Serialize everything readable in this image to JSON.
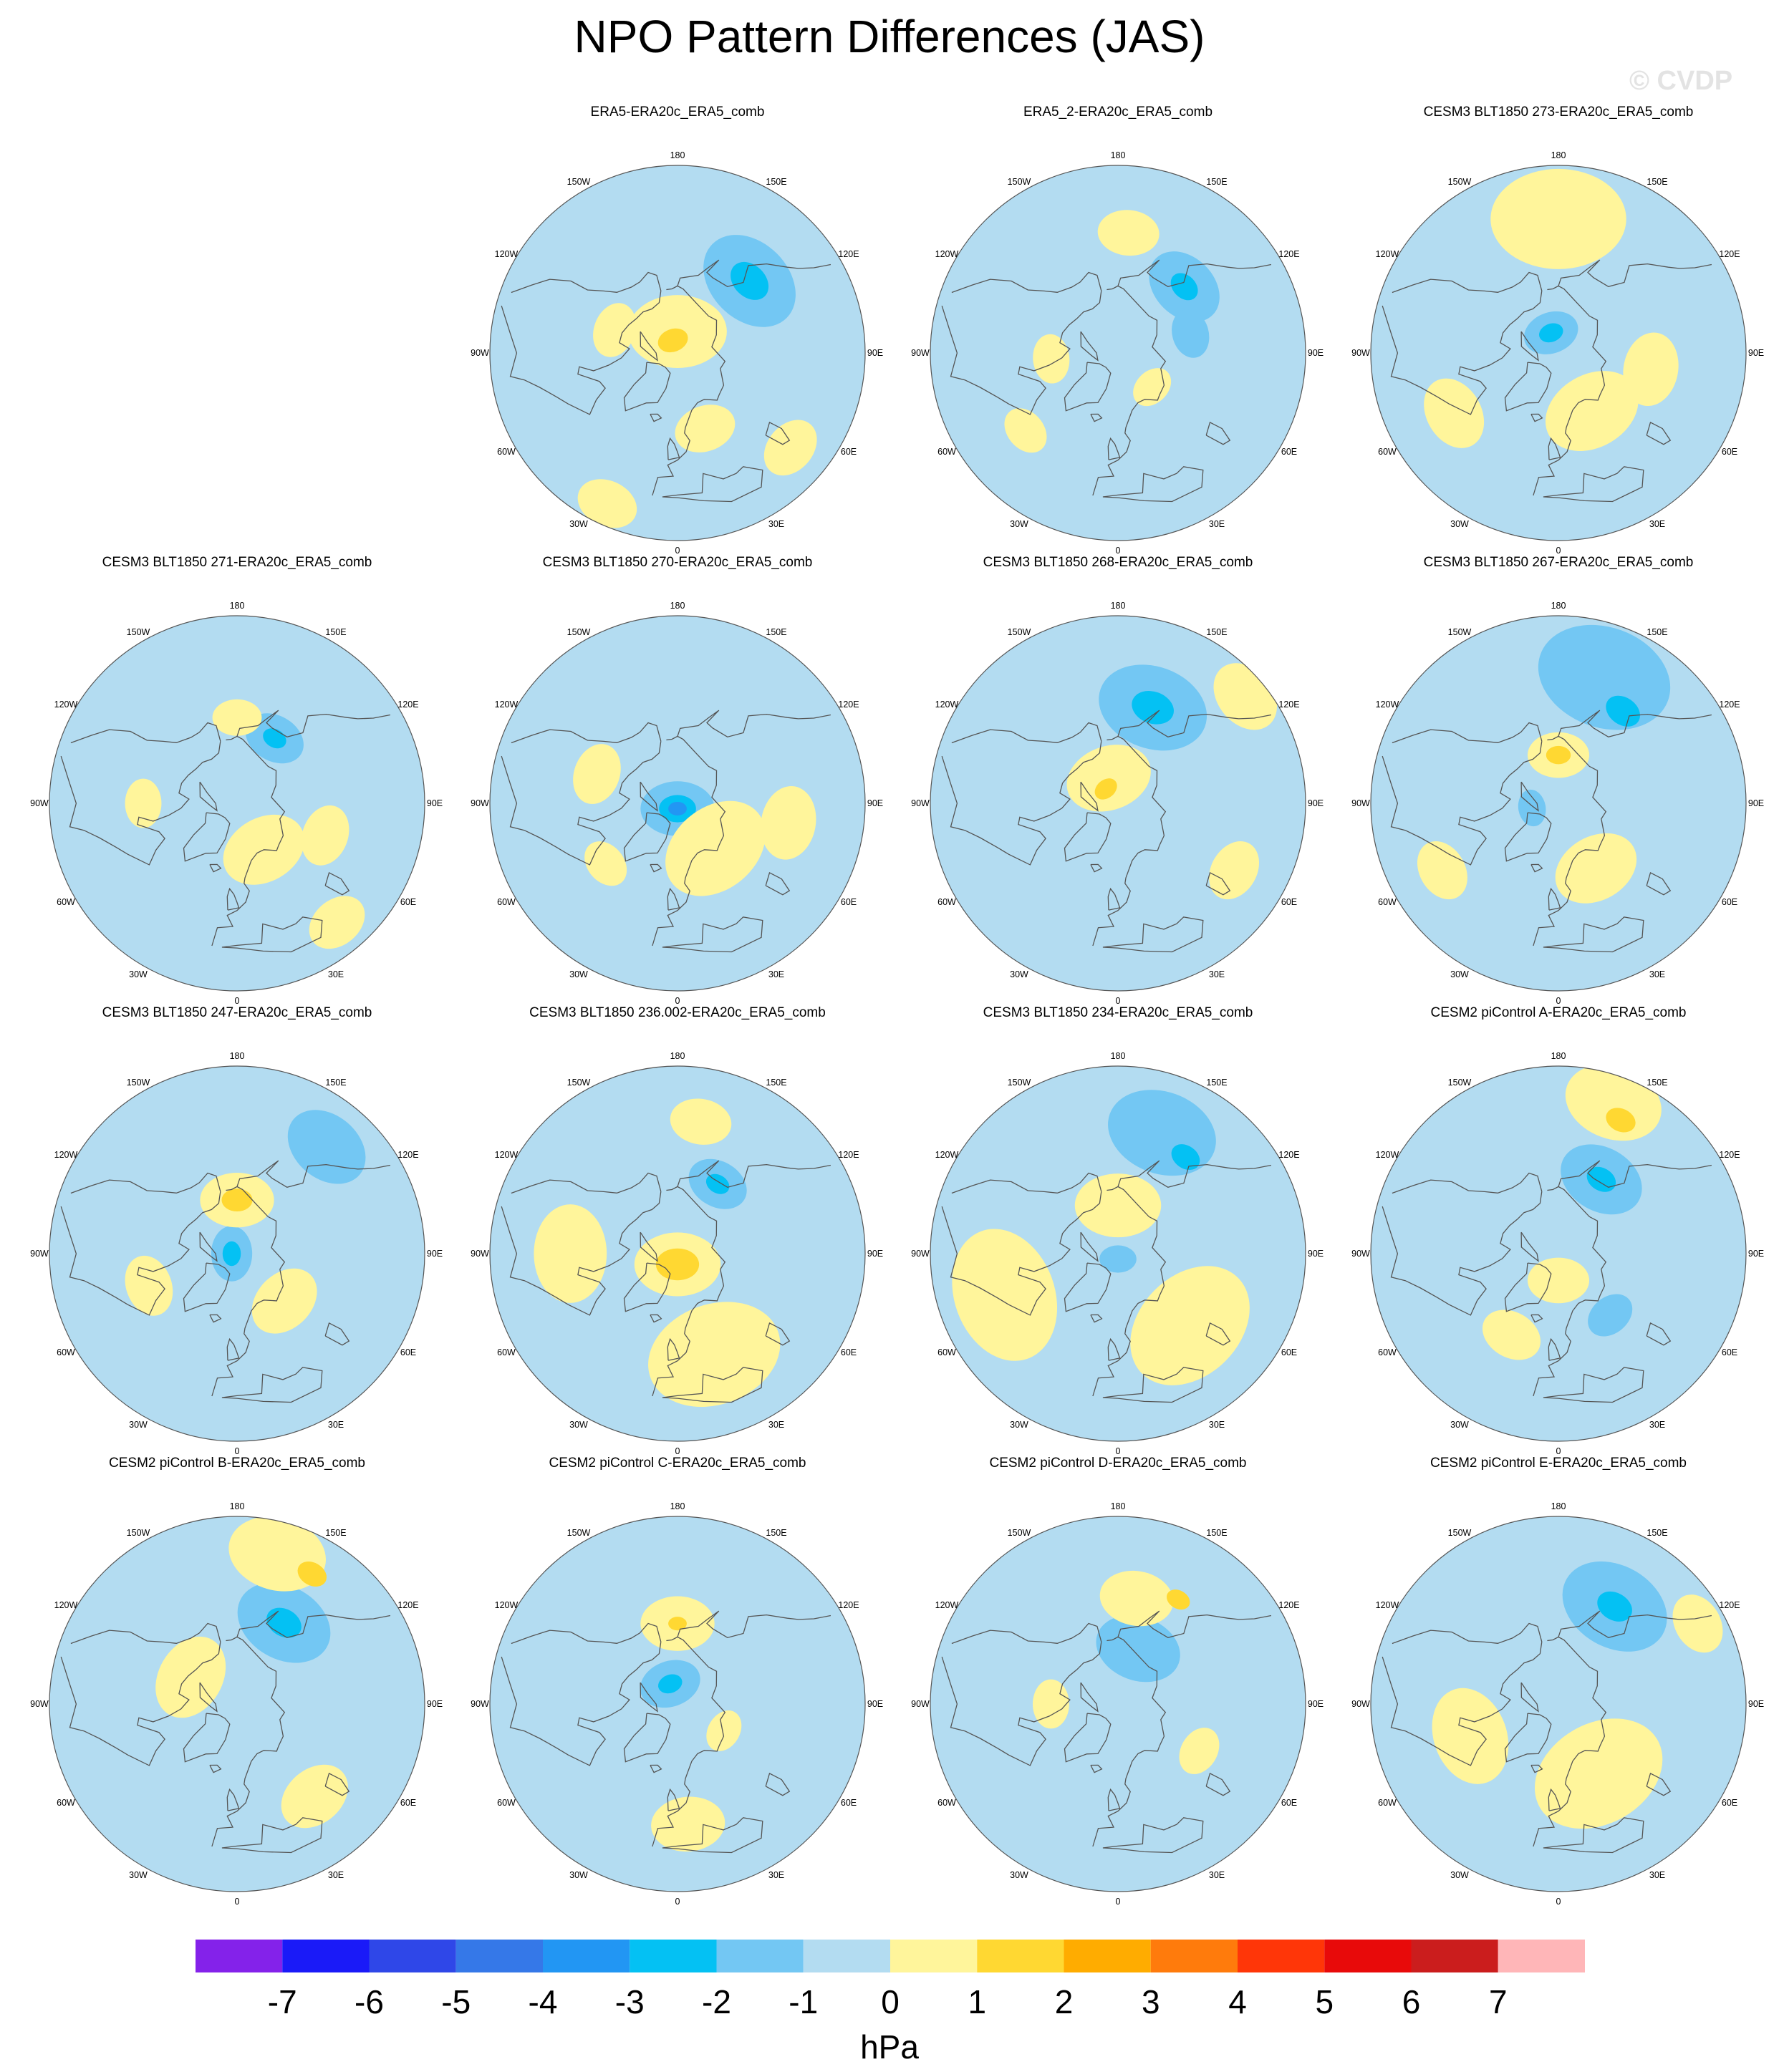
{
  "title": "NPO Pattern Differences (JAS)",
  "watermark": "© CVDP",
  "colors": {
    "ocean_zero_neg": "#b3dcf1",
    "coast": "#555555"
  },
  "longitude_labels": [
    "180",
    "150E",
    "120E",
    "90E",
    "60E",
    "30E",
    "0",
    "30W",
    "60W",
    "90W",
    "120W",
    "150W"
  ],
  "panels": [
    {
      "title": "ERA5-ERA20c_ERA5_comb",
      "blobs": [
        {
          "lon": 135,
          "lat": 52,
          "r": 17,
          "level": -2
        },
        {
          "lon": 135,
          "lat": 52,
          "r": 7,
          "level": -3
        },
        {
          "lon": 180,
          "lat": 82,
          "r": 16,
          "level": 1
        },
        {
          "lon": 200,
          "lat": 85,
          "r": 5,
          "level": 2
        },
        {
          "lon": 20,
          "lat": 60,
          "r": 10,
          "level": 1
        },
        {
          "lon": 250,
          "lat": 65,
          "r": 9,
          "level": 1
        },
        {
          "lon": 335,
          "lat": 28,
          "r": 10,
          "level": 1
        },
        {
          "lon": 50,
          "lat": 35,
          "r": 10,
          "level": 1
        }
      ]
    },
    {
      "title": "ERA5_2-ERA20c_ERA5_comb",
      "blobs": [
        {
          "lon": 135,
          "lat": 55,
          "r": 13,
          "level": -2
        },
        {
          "lon": 135,
          "lat": 55,
          "r": 5,
          "level": -3
        },
        {
          "lon": 105,
          "lat": 62,
          "r": 8,
          "level": -2
        },
        {
          "lon": 175,
          "lat": 45,
          "r": 10,
          "level": 1
        },
        {
          "lon": 275,
          "lat": 65,
          "r": 8,
          "level": 1
        },
        {
          "lon": 310,
          "lat": 45,
          "r": 8,
          "level": 1
        },
        {
          "lon": 45,
          "lat": 72,
          "r": 7,
          "level": 1
        }
      ]
    },
    {
      "title": "CESM3 BLT1850 273-ERA20c_ERA5_comb",
      "blobs": [
        {
          "lon": 180,
          "lat": 40,
          "r": 22,
          "level": 1
        },
        {
          "lon": 200,
          "lat": 82,
          "r": 9,
          "level": -2
        },
        {
          "lon": 200,
          "lat": 82,
          "r": 4,
          "level": -3
        },
        {
          "lon": 30,
          "lat": 65,
          "r": 16,
          "level": 1
        },
        {
          "lon": 80,
          "lat": 55,
          "r": 12,
          "level": 1
        },
        {
          "lon": 300,
          "lat": 45,
          "r": 12,
          "level": 1
        }
      ]
    },
    {
      "title": "CESM3 BLT1850 271-ERA20c_ERA5_comb",
      "blobs": [
        {
          "lon": 150,
          "lat": 62,
          "r": 10,
          "level": -2
        },
        {
          "lon": 150,
          "lat": 62,
          "r": 4,
          "level": -3
        },
        {
          "lon": 30,
          "lat": 70,
          "r": 14,
          "level": 1
        },
        {
          "lon": 70,
          "lat": 55,
          "r": 10,
          "level": 1
        },
        {
          "lon": 40,
          "lat": 32,
          "r": 10,
          "level": 1
        },
        {
          "lon": 270,
          "lat": 55,
          "r": 8,
          "level": 1
        },
        {
          "lon": 180,
          "lat": 58,
          "r": 8,
          "level": 1
        }
      ]
    },
    {
      "title": "CESM3 BLT1850 270-ERA20c_ERA5_comb",
      "blobs": [
        {
          "lon": 0,
          "lat": 88,
          "r": 12,
          "level": -2
        },
        {
          "lon": 0,
          "lat": 88,
          "r": 6,
          "level": -3
        },
        {
          "lon": 0,
          "lat": 88,
          "r": 3,
          "level": -4
        },
        {
          "lon": 40,
          "lat": 68,
          "r": 18,
          "level": 1
        },
        {
          "lon": 250,
          "lat": 58,
          "r": 10,
          "level": 1
        },
        {
          "lon": 80,
          "lat": 48,
          "r": 12,
          "level": 1
        },
        {
          "lon": 310,
          "lat": 55,
          "r": 8,
          "level": 1
        }
      ]
    },
    {
      "title": "CESM3 BLT1850 268-ERA20c_ERA5_comb",
      "blobs": [
        {
          "lon": 160,
          "lat": 52,
          "r": 18,
          "level": -2
        },
        {
          "lon": 160,
          "lat": 52,
          "r": 7,
          "level": -3
        },
        {
          "lon": 200,
          "lat": 80,
          "r": 14,
          "level": 1
        },
        {
          "lon": 220,
          "lat": 83,
          "r": 4,
          "level": 2
        },
        {
          "lon": 130,
          "lat": 28,
          "r": 12,
          "level": 1
        },
        {
          "lon": 60,
          "lat": 40,
          "r": 10,
          "level": 1
        }
      ]
    },
    {
      "title": "CESM3 BLT1850 267-ERA20c_ERA5_comb",
      "blobs": [
        {
          "lon": 160,
          "lat": 40,
          "r": 22,
          "level": -2
        },
        {
          "lon": 145,
          "lat": 48,
          "r": 6,
          "level": -3
        },
        {
          "lon": 180,
          "lat": 72,
          "r": 10,
          "level": 1
        },
        {
          "lon": 180,
          "lat": 72,
          "r": 4,
          "level": 2
        },
        {
          "lon": 280,
          "lat": 80,
          "r": 6,
          "level": -2
        },
        {
          "lon": 30,
          "lat": 62,
          "r": 14,
          "level": 1
        },
        {
          "lon": 300,
          "lat": 40,
          "r": 10,
          "level": 1
        }
      ]
    },
    {
      "title": "CESM3 BLT1850 247-ERA20c_ERA5_comb",
      "blobs": [
        {
          "lon": 270,
          "lat": 88,
          "r": 9,
          "level": -2
        },
        {
          "lon": 270,
          "lat": 88,
          "r": 4,
          "level": -3
        },
        {
          "lon": 180,
          "lat": 70,
          "r": 12,
          "level": 1
        },
        {
          "lon": 180,
          "lat": 70,
          "r": 5,
          "level": 2
        },
        {
          "lon": 140,
          "lat": 38,
          "r": 14,
          "level": -2
        },
        {
          "lon": 45,
          "lat": 65,
          "r": 12,
          "level": 1
        },
        {
          "lon": 290,
          "lat": 55,
          "r": 10,
          "level": 1
        }
      ]
    },
    {
      "title": "CESM3 BLT1850 236.002-ERA20c_ERA5_comb",
      "blobs": [
        {
          "lon": 0,
          "lat": 86,
          "r": 14,
          "level": 1
        },
        {
          "lon": 0,
          "lat": 86,
          "r": 7,
          "level": 2
        },
        {
          "lon": 150,
          "lat": 60,
          "r": 10,
          "level": -2
        },
        {
          "lon": 150,
          "lat": 60,
          "r": 4,
          "level": -3
        },
        {
          "lon": 20,
          "lat": 50,
          "r": 22,
          "level": 1
        },
        {
          "lon": 270,
          "lat": 50,
          "r": 16,
          "level": 1
        },
        {
          "lon": 170,
          "lat": 40,
          "r": 10,
          "level": 1
        }
      ]
    },
    {
      "title": "CESM3 BLT1850 234-ERA20c_ERA5_comb",
      "blobs": [
        {
          "lon": 160,
          "lat": 42,
          "r": 18,
          "level": -2
        },
        {
          "lon": 145,
          "lat": 46,
          "r": 5,
          "level": -3
        },
        {
          "lon": 180,
          "lat": 72,
          "r": 14,
          "level": 1
        },
        {
          "lon": 45,
          "lat": 52,
          "r": 22,
          "level": 1
        },
        {
          "lon": 290,
          "lat": 45,
          "r": 22,
          "level": 1
        },
        {
          "lon": 0,
          "lat": 88,
          "r": 6,
          "level": -2
        }
      ]
    },
    {
      "title": "CESM2 piControl A-ERA20c_ERA5_comb",
      "blobs": [
        {
          "lon": 150,
          "lat": 58,
          "r": 14,
          "level": -2
        },
        {
          "lon": 150,
          "lat": 58,
          "r": 5,
          "level": -3
        },
        {
          "lon": 160,
          "lat": 30,
          "r": 16,
          "level": 1
        },
        {
          "lon": 155,
          "lat": 35,
          "r": 5,
          "level": 2
        },
        {
          "lon": 0,
          "lat": 80,
          "r": 10,
          "level": 1
        },
        {
          "lon": 40,
          "lat": 60,
          "r": 8,
          "level": -2
        },
        {
          "lon": 330,
          "lat": 55,
          "r": 10,
          "level": 1
        }
      ]
    },
    {
      "title": "CESM2 piControl B-ERA20c_ERA5_comb",
      "blobs": [
        {
          "lon": 150,
          "lat": 55,
          "r": 16,
          "level": -2
        },
        {
          "lon": 150,
          "lat": 55,
          "r": 6,
          "level": -3
        },
        {
          "lon": 165,
          "lat": 32,
          "r": 16,
          "level": 1
        },
        {
          "lon": 150,
          "lat": 34,
          "r": 5,
          "level": 2
        },
        {
          "lon": 240,
          "lat": 70,
          "r": 14,
          "level": 1
        },
        {
          "lon": 40,
          "lat": 45,
          "r": 12,
          "level": 1
        }
      ]
    },
    {
      "title": "CESM2 piControl C-ERA20c_ERA5_comb",
      "blobs": [
        {
          "lon": 200,
          "lat": 82,
          "r": 10,
          "level": -2
        },
        {
          "lon": 200,
          "lat": 82,
          "r": 4,
          "level": -3
        },
        {
          "lon": 180,
          "lat": 60,
          "r": 12,
          "level": 1
        },
        {
          "lon": 180,
          "lat": 60,
          "r": 3,
          "level": 2
        },
        {
          "lon": 5,
          "lat": 45,
          "r": 12,
          "level": 1
        },
        {
          "lon": 60,
          "lat": 70,
          "r": 7,
          "level": 1
        }
      ]
    },
    {
      "title": "CESM2 piControl D-ERA20c_ERA5_comb",
      "blobs": [
        {
          "lon": 160,
          "lat": 68,
          "r": 14,
          "level": -2
        },
        {
          "lon": 170,
          "lat": 50,
          "r": 12,
          "level": 1
        },
        {
          "lon": 150,
          "lat": 45,
          "r": 4,
          "level": 2
        },
        {
          "lon": 270,
          "lat": 65,
          "r": 8,
          "level": 1
        },
        {
          "lon": 60,
          "lat": 55,
          "r": 8,
          "level": 1
        }
      ]
    },
    {
      "title": "CESM2 piControl E-ERA20c_ERA5_comb",
      "blobs": [
        {
          "lon": 150,
          "lat": 48,
          "r": 18,
          "level": -2
        },
        {
          "lon": 150,
          "lat": 48,
          "r": 6,
          "level": -3
        },
        {
          "lon": 30,
          "lat": 60,
          "r": 22,
          "level": 1
        },
        {
          "lon": 290,
          "lat": 55,
          "r": 16,
          "level": 1
        },
        {
          "lon": 120,
          "lat": 30,
          "r": 10,
          "level": 1
        }
      ]
    }
  ],
  "colorbar": {
    "unit": "hPa",
    "labels": [
      "-7",
      "-6",
      "-5",
      "-4",
      "-3",
      "-2",
      "-1",
      "0",
      "1",
      "2",
      "3",
      "4",
      "5",
      "6",
      "7"
    ],
    "colors": [
      "#8422ea",
      "#1a1af8",
      "#2f47e8",
      "#3578e8",
      "#2296f3",
      "#04c1f3",
      "#73c7f3",
      "#b3dcf1",
      "#fff59b",
      "#ffd832",
      "#ffac00",
      "#ff7b0c",
      "#ff3608",
      "#e80a0a",
      "#cb1d1d",
      "#ffb6b8"
    ]
  }
}
